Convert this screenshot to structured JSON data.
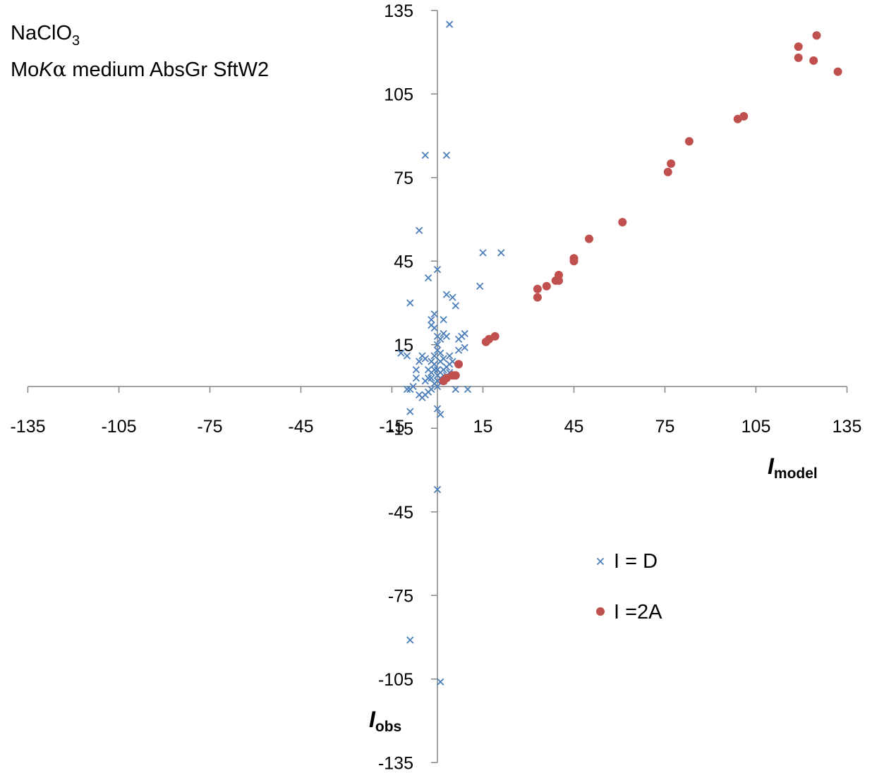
{
  "chart_data": {
    "type": "scatter",
    "annotation": {
      "line1_main": "NaClO",
      "line1_sub": "3",
      "line2_prefix": "Mo",
      "line2_italic": "K",
      "line2_greek": "α",
      "line2_suffix": " medium AbsGr SftW2"
    },
    "xlabel": {
      "main": "I",
      "sub": "model"
    },
    "ylabel": {
      "main": "I",
      "sub": "obs"
    },
    "xlim": [
      -135,
      135
    ],
    "ylim": [
      -135,
      135
    ],
    "xticks": [
      -135,
      -105,
      -75,
      -45,
      -15,
      15,
      45,
      75,
      105,
      135
    ],
    "yticks": [
      -135,
      -105,
      -75,
      -45,
      -15,
      15,
      45,
      75,
      105,
      135
    ],
    "grid": false,
    "legend_position": "right",
    "series": [
      {
        "name": "I = D",
        "marker": "x",
        "color": "#4a7ebb",
        "points": [
          [
            4,
            130
          ],
          [
            -4,
            83
          ],
          [
            3,
            83
          ],
          [
            -6,
            56
          ],
          [
            -9,
            30
          ],
          [
            -9,
            -91
          ],
          [
            1,
            -106
          ],
          [
            0,
            -37
          ],
          [
            15,
            48
          ],
          [
            21,
            48
          ],
          [
            14,
            36
          ],
          [
            0,
            42
          ],
          [
            -3,
            39
          ],
          [
            3,
            33
          ],
          [
            5,
            32
          ],
          [
            6,
            29
          ],
          [
            -1,
            26
          ],
          [
            2,
            24
          ],
          [
            -2,
            24
          ],
          [
            -2,
            22
          ],
          [
            -1,
            21
          ],
          [
            0,
            18
          ],
          [
            1,
            17
          ],
          [
            0,
            15
          ],
          [
            0,
            13
          ],
          [
            1,
            12
          ],
          [
            -1,
            11
          ],
          [
            1,
            9
          ],
          [
            9,
            19
          ],
          [
            8,
            18
          ],
          [
            7,
            17
          ],
          [
            2,
            19
          ],
          [
            3,
            18
          ],
          [
            9,
            14
          ],
          [
            7,
            13
          ],
          [
            4,
            11
          ],
          [
            2,
            10
          ],
          [
            5,
            9
          ],
          [
            4,
            8
          ],
          [
            3,
            7
          ],
          [
            2,
            6
          ],
          [
            1,
            5
          ],
          [
            0,
            6
          ],
          [
            0,
            4
          ],
          [
            1,
            3
          ],
          [
            0,
            2
          ],
          [
            -1,
            1
          ],
          [
            0,
            0
          ],
          [
            -2,
            5
          ],
          [
            -2,
            3
          ],
          [
            -1,
            6
          ],
          [
            -1,
            8
          ],
          [
            -2,
            9
          ],
          [
            -3,
            6
          ],
          [
            -3,
            3
          ],
          [
            -4,
            2
          ],
          [
            -4,
            10
          ],
          [
            -5,
            11
          ],
          [
            -6,
            9
          ],
          [
            -7,
            6
          ],
          [
            -7,
            3
          ],
          [
            -8,
            0
          ],
          [
            -9,
            -1
          ],
          [
            -10,
            -1
          ],
          [
            -10,
            11
          ],
          [
            -12,
            12
          ],
          [
            -6,
            -3
          ],
          [
            -5,
            -4
          ],
          [
            -4,
            -3
          ],
          [
            -3,
            -2
          ],
          [
            -2,
            -1
          ],
          [
            -9,
            -9
          ],
          [
            0,
            -8
          ],
          [
            1,
            -10
          ],
          [
            6,
            -1
          ],
          [
            10,
            -1
          ],
          [
            2,
            2
          ],
          [
            3,
            4
          ],
          [
            4,
            5
          ]
        ]
      },
      {
        "name": "I =2A",
        "marker": "o",
        "color": "#c0504d",
        "points": [
          [
            125,
            126
          ],
          [
            119,
            122
          ],
          [
            119,
            118
          ],
          [
            124,
            117
          ],
          [
            132,
            113
          ],
          [
            101,
            97
          ],
          [
            99,
            96
          ],
          [
            83,
            88
          ],
          [
            77,
            80
          ],
          [
            76,
            77
          ],
          [
            61,
            59
          ],
          [
            50,
            53
          ],
          [
            45,
            46
          ],
          [
            45,
            45
          ],
          [
            40,
            40
          ],
          [
            40,
            38
          ],
          [
            39,
            38
          ],
          [
            36,
            36
          ],
          [
            33,
            35
          ],
          [
            33,
            32
          ],
          [
            19,
            18
          ],
          [
            17,
            17
          ],
          [
            16,
            16
          ],
          [
            7,
            8
          ],
          [
            6,
            4
          ],
          [
            5,
            4
          ],
          [
            3,
            3
          ],
          [
            2,
            2
          ]
        ]
      }
    ]
  }
}
